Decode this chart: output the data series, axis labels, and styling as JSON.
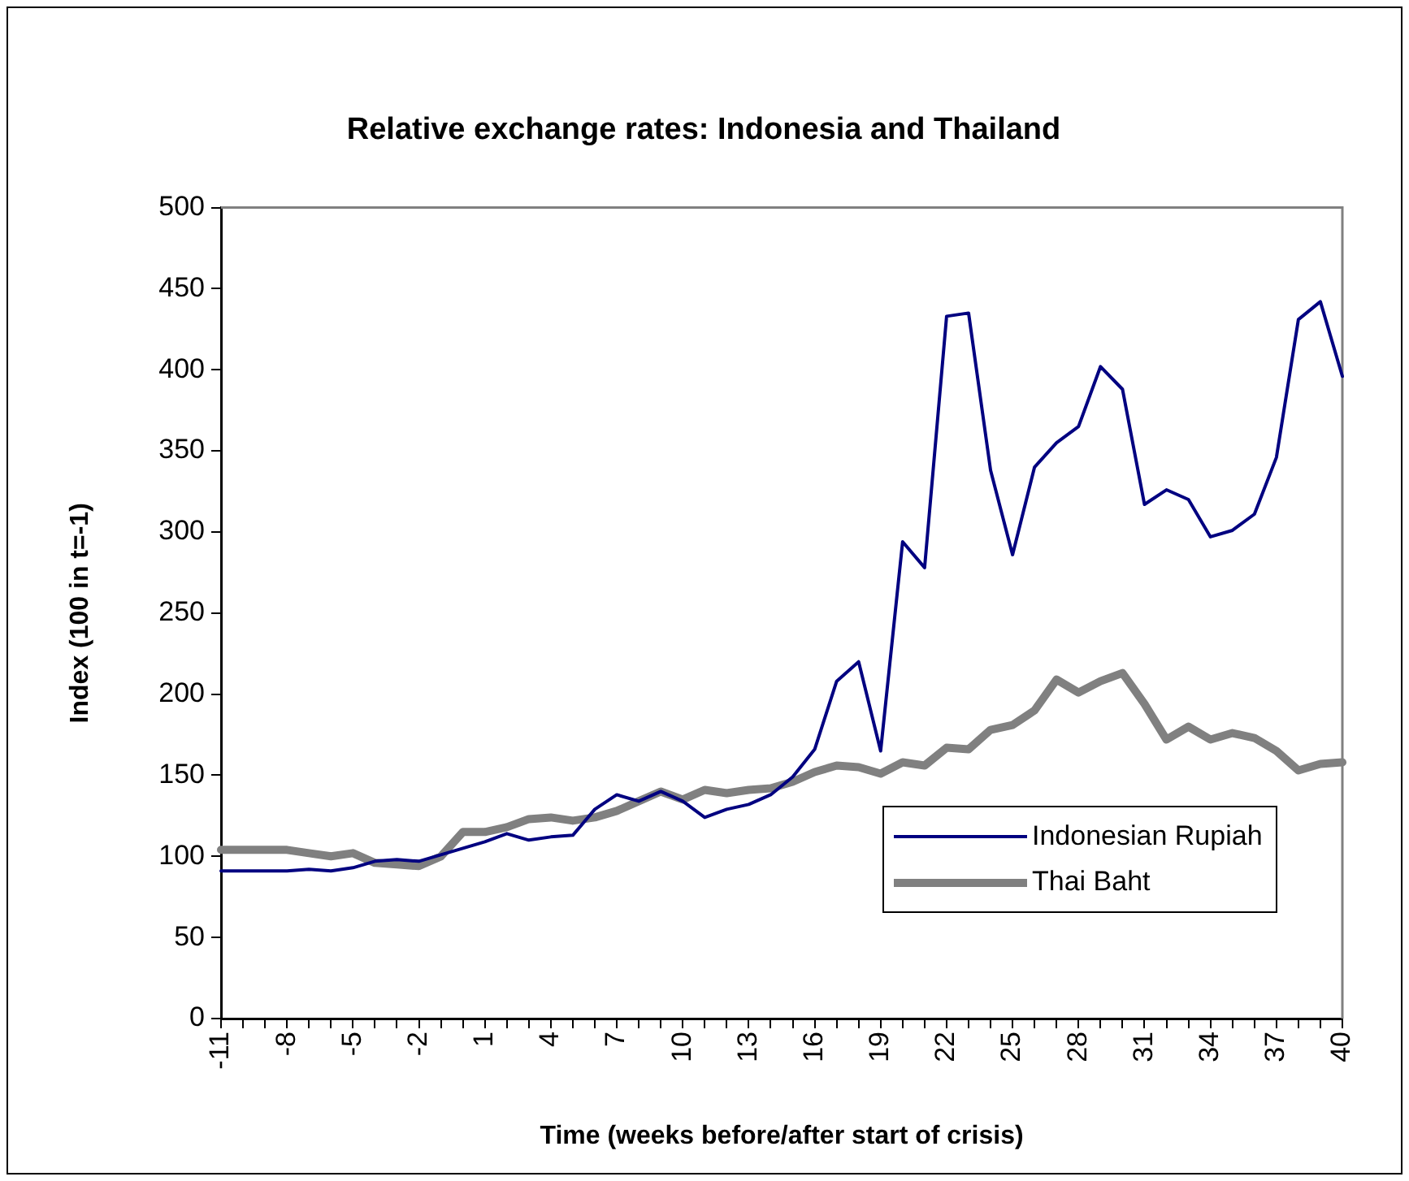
{
  "chart_data": {
    "type": "line",
    "title": "Relative exchange rates: Indonesia and Thailand",
    "xlabel": "Time (weeks before/after start of crisis)",
    "ylabel": "Index (100 in t=-1)",
    "categories": [
      "-11",
      null,
      null,
      "-8",
      null,
      null,
      "-5",
      null,
      null,
      "-2",
      null,
      null,
      "1",
      null,
      null,
      "4",
      null,
      null,
      "7",
      null,
      null,
      "10",
      null,
      null,
      "13",
      null,
      null,
      "16",
      null,
      null,
      "19",
      null,
      null,
      "22",
      null,
      null,
      "25",
      null,
      null,
      "28",
      null,
      null,
      "31",
      null,
      null,
      "34",
      null,
      null,
      "37",
      null,
      null,
      "40"
    ],
    "series": [
      {
        "name": "Indonesian Rupiah",
        "color": "#000080",
        "values": [
          91,
          91,
          91,
          91,
          92,
          91,
          93,
          97,
          98,
          97,
          101,
          105,
          109,
          114,
          110,
          112,
          113,
          129,
          138,
          134,
          140,
          134,
          124,
          129,
          132,
          138,
          149,
          166,
          208,
          220,
          165,
          294,
          278,
          433,
          435,
          338,
          286,
          340,
          355,
          365,
          402,
          388,
          317,
          326,
          320,
          297,
          301,
          311,
          346,
          431,
          442,
          396
        ]
      },
      {
        "name": "Thai Baht",
        "color": "#808080",
        "values": [
          104,
          104,
          104,
          104,
          102,
          100,
          102,
          96,
          95,
          94,
          100,
          115,
          115,
          118,
          123,
          124,
          122,
          124,
          128,
          134,
          140,
          135,
          141,
          139,
          141,
          142,
          146,
          152,
          156,
          155,
          151,
          158,
          156,
          167,
          166,
          178,
          181,
          190,
          209,
          201,
          208,
          213,
          194,
          172,
          180,
          172,
          176,
          173,
          165,
          153,
          157,
          158
        ]
      }
    ],
    "ylim": [
      0,
      500
    ],
    "yticks": [
      0,
      50,
      100,
      150,
      200,
      250,
      300,
      350,
      400,
      450,
      500
    ],
    "grid": false,
    "legend": "bottom right"
  }
}
